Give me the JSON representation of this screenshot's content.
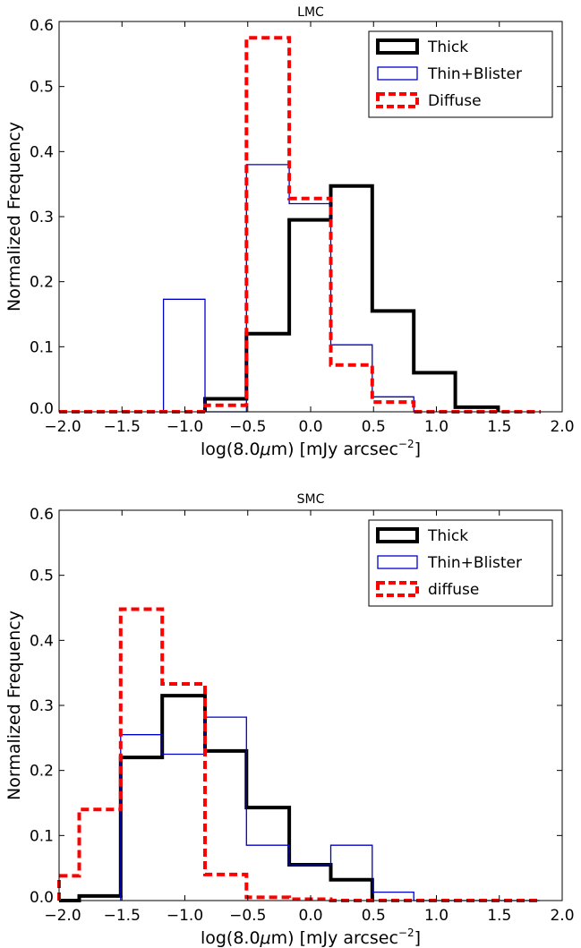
{
  "chart_data": [
    {
      "type": "histogram",
      "title": "LMC",
      "xlabel": "log(8.0",
      "xlabel_mu": "μ",
      "xlabel_mid": "m) [mJy arcsec",
      "xlabel_exp": "−2",
      "xlabel_end": "]",
      "ylabel": "Normalized Frequency",
      "xlim": [
        -2.0,
        2.0
      ],
      "ylim": [
        0.0,
        0.6
      ],
      "xticks": [
        -2.0,
        -1.5,
        -1.0,
        -0.5,
        0.0,
        0.5,
        1.0,
        1.5,
        2.0
      ],
      "xtick_labels": [
        "−2.0",
        "−1.5",
        "−1.0",
        "−0.5",
        "0.0",
        "0.5",
        "1.0",
        "1.5",
        "2.0"
      ],
      "yticks": [
        0.0,
        0.1,
        0.2,
        0.3,
        0.4,
        0.5,
        0.6
      ],
      "ytick_labels": [
        "0.0",
        "0.1",
        "0.2",
        "0.3",
        "0.4",
        "0.5",
        "0.6"
      ],
      "legend_position": "top-right",
      "series": [
        {
          "name": "Thick",
          "color": "#000000",
          "style": "solid-thick",
          "bin_edges": [
            -0.84,
            -0.51,
            -0.17,
            0.16,
            0.49,
            0.82,
            1.15,
            1.49
          ],
          "values": [
            0.02,
            0.12,
            0.295,
            0.347,
            0.155,
            0.06,
            0.007
          ]
        },
        {
          "name": "Thin+Blister",
          "color": "#0000cc",
          "style": "solid-thin",
          "bin_edges": [
            -1.17,
            -0.84,
            -0.51,
            -0.17,
            0.16,
            0.49,
            0.82
          ],
          "values": [
            0.173,
            0.0,
            0.38,
            0.32,
            0.103,
            0.023
          ]
        },
        {
          "name": "Diffuse",
          "color": "#ff0000",
          "style": "dashed-thick",
          "bin_edges": [
            -2.0,
            -0.84,
            -0.51,
            -0.17,
            0.16,
            0.49,
            0.82,
            1.83
          ],
          "values": [
            0.0,
            0.01,
            0.575,
            0.328,
            0.072,
            0.015,
            0.0
          ]
        }
      ]
    },
    {
      "type": "histogram",
      "title": "SMC",
      "xlabel": "log(8.0",
      "xlabel_mu": "μ",
      "xlabel_mid": "m) [mJy arcsec",
      "xlabel_exp": "−2",
      "xlabel_end": "]",
      "ylabel": "Normalized Frequency",
      "xlim": [
        -2.0,
        2.0
      ],
      "ylim": [
        0.0,
        0.6
      ],
      "xticks": [
        -2.0,
        -1.5,
        -1.0,
        -0.5,
        0.0,
        0.5,
        1.0,
        1.5,
        2.0
      ],
      "xtick_labels": [
        "−2.0",
        "−1.5",
        "−1.0",
        "−0.5",
        "0.0",
        "0.5",
        "1.0",
        "1.5",
        "2.0"
      ],
      "yticks": [
        0.0,
        0.1,
        0.2,
        0.3,
        0.4,
        0.5,
        0.6
      ],
      "ytick_labels": [
        "0.0",
        "0.1",
        "0.2",
        "0.3",
        "0.4",
        "0.5",
        "0.6"
      ],
      "legend_position": "top-right",
      "series": [
        {
          "name": "Thick",
          "color": "#000000",
          "style": "solid-thick",
          "bin_edges": [
            -2.0,
            -1.84,
            -1.51,
            -1.18,
            -0.84,
            -0.51,
            -0.17,
            0.16,
            0.49
          ],
          "values": [
            0.0,
            0.007,
            0.22,
            0.315,
            0.23,
            0.143,
            0.055,
            0.032
          ]
        },
        {
          "name": "Thin+Blister",
          "color": "#0000cc",
          "style": "solid-thin",
          "bin_edges": [
            -1.51,
            -1.18,
            -0.84,
            -0.51,
            -0.17,
            0.16,
            0.49,
            0.82,
            1.82
          ],
          "values": [
            0.255,
            0.225,
            0.282,
            0.085,
            0.055,
            0.085,
            0.013,
            0.0
          ]
        },
        {
          "name": "diffuse",
          "color": "#ff0000",
          "style": "dashed-thick",
          "bin_edges": [
            -2.0,
            -1.84,
            -1.51,
            -1.18,
            -0.84,
            -0.51,
            -0.17,
            0.16,
            0.49,
            1.82
          ],
          "values": [
            0.038,
            0.14,
            0.448,
            0.333,
            0.04,
            0.005,
            0.002,
            0.0,
            0.0
          ]
        }
      ]
    }
  ]
}
